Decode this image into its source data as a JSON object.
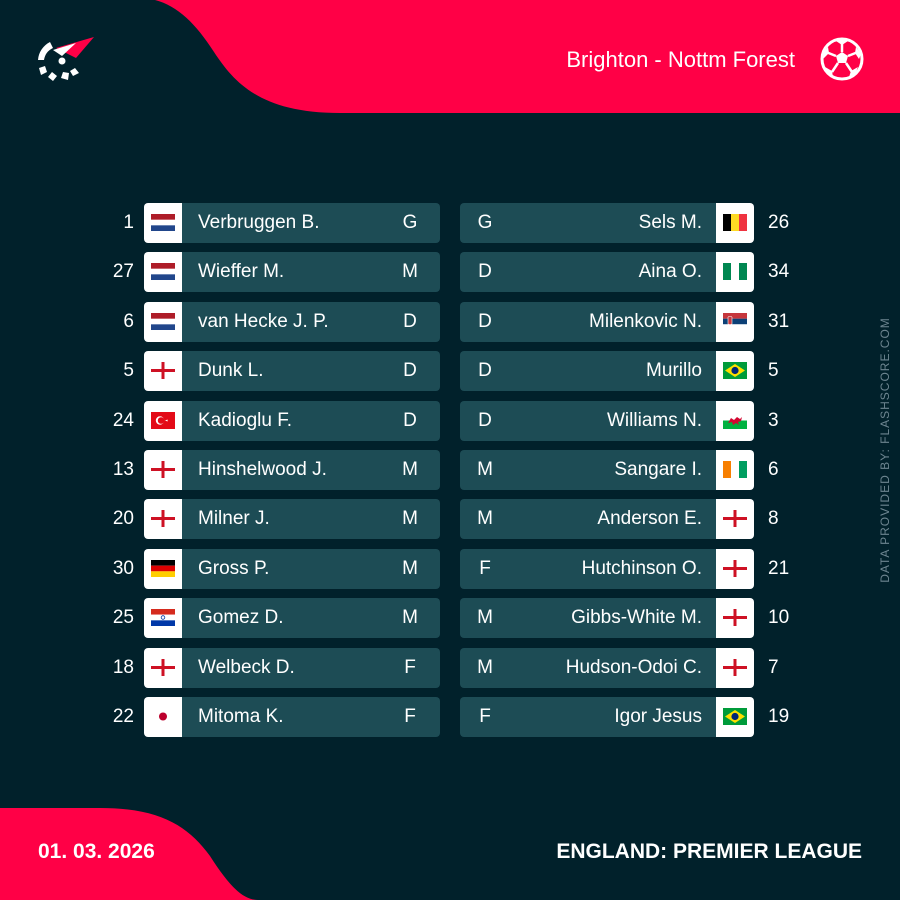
{
  "header": {
    "match_title": "Brighton - Nottm Forest",
    "logo_icon": "flashscore-logo-icon",
    "sport_icon": "football-icon"
  },
  "colors": {
    "accent": "#ff0046",
    "background": "#01212b",
    "row": "#1d4c55",
    "text": "#ffffff",
    "credit": "#6d8590"
  },
  "home": {
    "team": "Brighton",
    "players": [
      {
        "number": "1",
        "name": "Verbruggen B.",
        "position": "G",
        "flag": "netherlands"
      },
      {
        "number": "27",
        "name": "Wieffer M.",
        "position": "M",
        "flag": "netherlands"
      },
      {
        "number": "6",
        "name": "van Hecke J. P.",
        "position": "D",
        "flag": "netherlands"
      },
      {
        "number": "5",
        "name": "Dunk L.",
        "position": "D",
        "flag": "england"
      },
      {
        "number": "24",
        "name": "Kadioglu F.",
        "position": "D",
        "flag": "turkey"
      },
      {
        "number": "13",
        "name": "Hinshelwood J.",
        "position": "M",
        "flag": "england"
      },
      {
        "number": "20",
        "name": "Milner J.",
        "position": "M",
        "flag": "england"
      },
      {
        "number": "30",
        "name": "Gross P.",
        "position": "M",
        "flag": "germany"
      },
      {
        "number": "25",
        "name": "Gomez D.",
        "position": "M",
        "flag": "paraguay"
      },
      {
        "number": "18",
        "name": "Welbeck D.",
        "position": "F",
        "flag": "england"
      },
      {
        "number": "22",
        "name": "Mitoma K.",
        "position": "F",
        "flag": "japan"
      }
    ]
  },
  "away": {
    "team": "Nottm Forest",
    "players": [
      {
        "number": "26",
        "name": "Sels M.",
        "position": "G",
        "flag": "belgium"
      },
      {
        "number": "34",
        "name": "Aina O.",
        "position": "D",
        "flag": "nigeria"
      },
      {
        "number": "31",
        "name": "Milenkovic N.",
        "position": "D",
        "flag": "serbia"
      },
      {
        "number": "5",
        "name": "Murillo",
        "position": "D",
        "flag": "brazil"
      },
      {
        "number": "3",
        "name": "Williams N.",
        "position": "D",
        "flag": "wales"
      },
      {
        "number": "6",
        "name": "Sangare I.",
        "position": "M",
        "flag": "ivory-coast"
      },
      {
        "number": "8",
        "name": "Anderson E.",
        "position": "M",
        "flag": "england"
      },
      {
        "number": "21",
        "name": "Hutchinson O.",
        "position": "F",
        "flag": "england"
      },
      {
        "number": "10",
        "name": "Gibbs-White M.",
        "position": "M",
        "flag": "england"
      },
      {
        "number": "7",
        "name": "Hudson-Odoi C.",
        "position": "M",
        "flag": "england"
      },
      {
        "number": "19",
        "name": "Igor Jesus",
        "position": "F",
        "flag": "brazil"
      }
    ]
  },
  "footer": {
    "date": "01. 03. 2026",
    "competition": "ENGLAND: PREMIER LEAGUE",
    "credit": "DATA PROVIDED BY: FLASHSCORE.COM"
  }
}
